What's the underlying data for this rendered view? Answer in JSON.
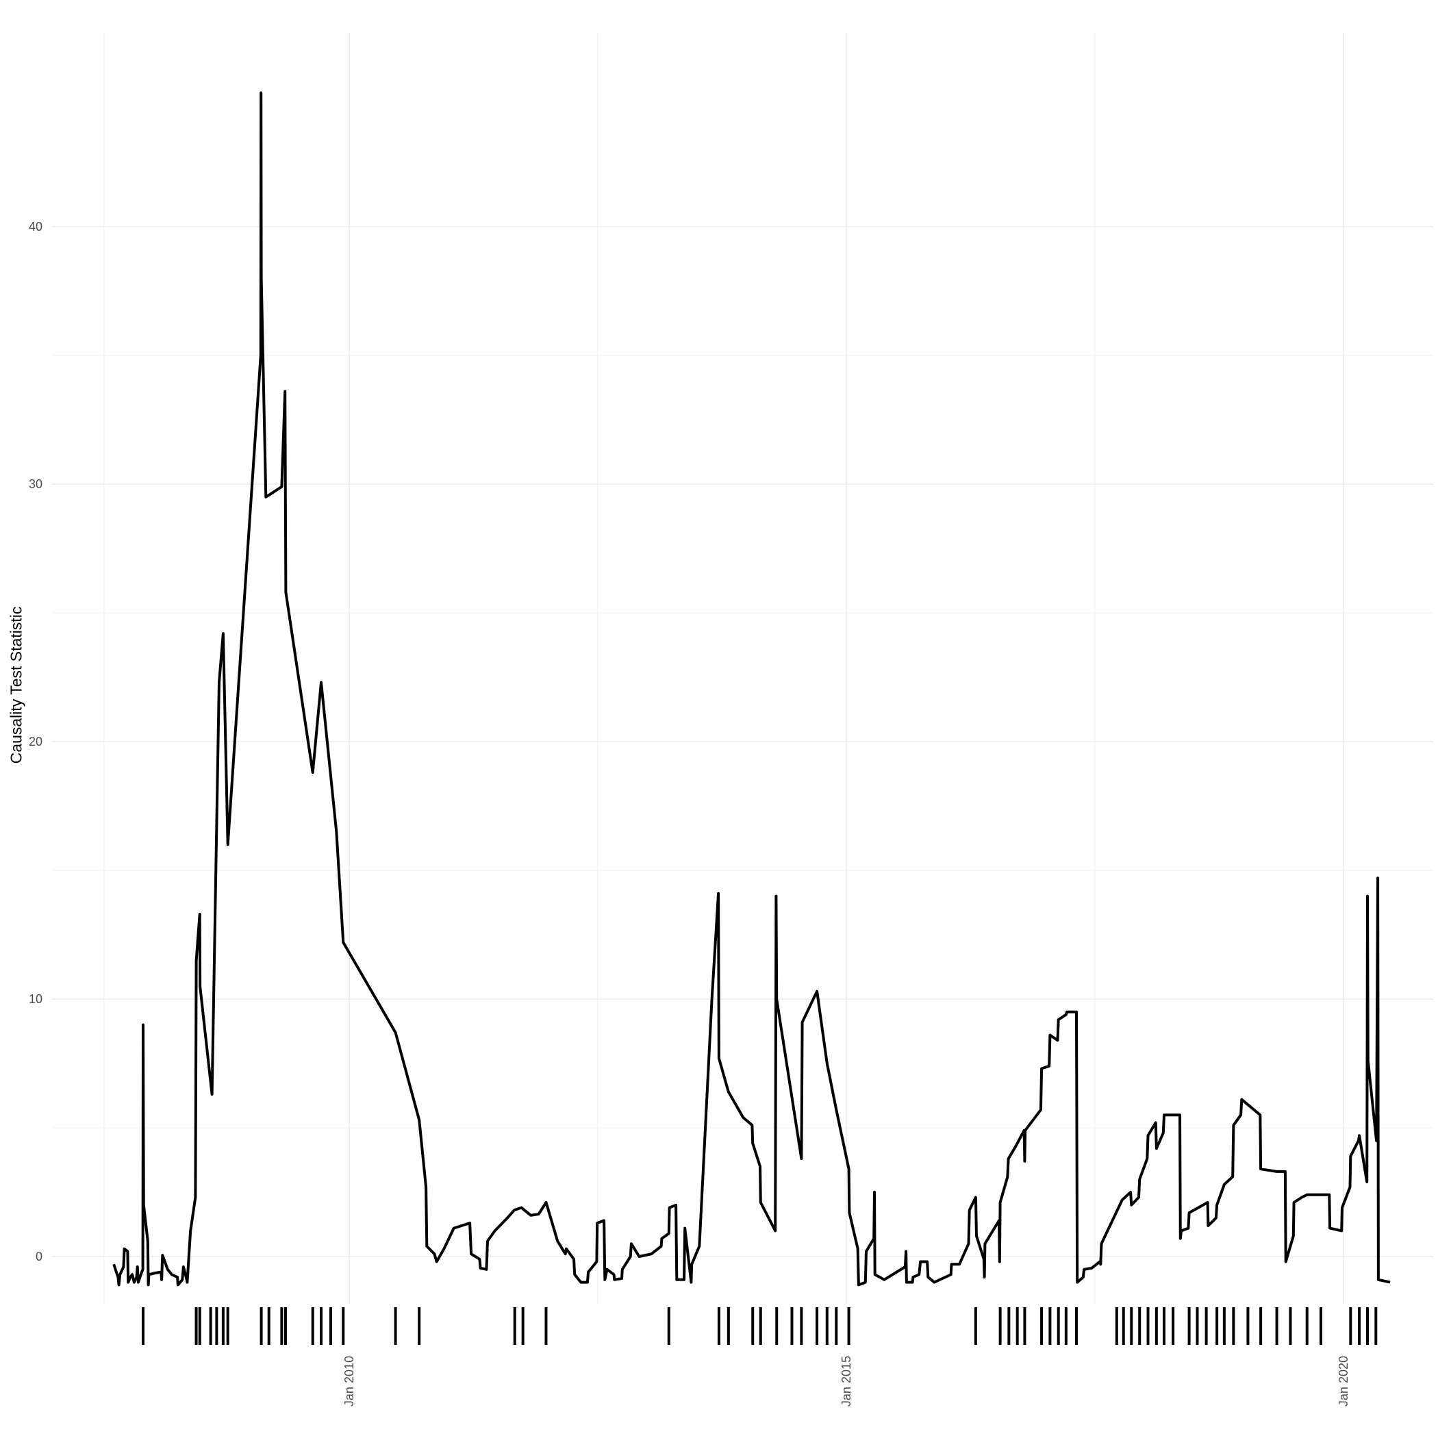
{
  "chart_data": {
    "type": "line",
    "title": "",
    "xlabel": "",
    "ylabel": "Causality Test Statistic",
    "xlim": [
      "2007-06-01",
      "2020-10-15"
    ],
    "ylim": [
      -2,
      45.3
    ],
    "x_ticks": [
      {
        "date": "2010-01-01",
        "label": "Jan 2010"
      },
      {
        "date": "2015-01-01",
        "label": "Jan 2015"
      },
      {
        "date": "2020-01-01",
        "label": "Jan 2020"
      }
    ],
    "x_minor_ticks": [
      "2007-07-15",
      "2012-07-01",
      "2017-07-01"
    ],
    "y_ticks": [
      0,
      10,
      20,
      30,
      40
    ],
    "y_minor_ticks": [
      5,
      15,
      25,
      35
    ],
    "grid": true,
    "colors": {
      "line": "#000000",
      "grid": "#ebebeb",
      "tick_text": "#4d4d4d"
    },
    "series": [
      {
        "name": "",
        "points": [
          [
            "2007-08-20",
            -0.3
          ],
          [
            "2007-09-05",
            -0.8
          ],
          [
            "2007-09-08",
            -1.1
          ],
          [
            "2007-09-12",
            -0.7
          ],
          [
            "2007-09-25",
            -0.4
          ],
          [
            "2007-09-28",
            0.3
          ],
          [
            "2007-10-10",
            0.2
          ],
          [
            "2007-10-12",
            -1.0
          ],
          [
            "2007-10-20",
            -0.8
          ],
          [
            "2007-10-27",
            -0.7
          ],
          [
            "2007-11-03",
            -1.0
          ],
          [
            "2007-11-12",
            -0.8
          ],
          [
            "2007-11-15",
            -0.4
          ],
          [
            "2007-11-18",
            -1.0
          ],
          [
            "2007-12-01",
            -0.6
          ],
          [
            "2007-12-05",
            -0.5
          ],
          [
            "2007-12-06",
            9.0
          ],
          [
            "2007-12-08",
            2.0
          ],
          [
            "2007-12-23",
            0.6
          ],
          [
            "2007-12-25",
            -1.1
          ],
          [
            "2007-12-27",
            -0.7
          ],
          [
            "2008-01-15",
            -0.65
          ],
          [
            "2008-02-10",
            -0.6
          ],
          [
            "2008-02-12",
            -0.9
          ],
          [
            "2008-02-15",
            0.05
          ],
          [
            "2008-03-05",
            -0.5
          ],
          [
            "2008-03-20",
            -0.7
          ],
          [
            "2008-04-10",
            -0.8
          ],
          [
            "2008-04-12",
            -1.1
          ],
          [
            "2008-04-28",
            -0.9
          ],
          [
            "2008-05-02",
            -0.4
          ],
          [
            "2008-05-12",
            -0.8
          ],
          [
            "2008-05-16",
            -1.0
          ],
          [
            "2008-05-28",
            1.0
          ],
          [
            "2008-06-15",
            2.3
          ],
          [
            "2008-06-18",
            11.5
          ],
          [
            "2008-07-01",
            13.3
          ],
          [
            "2008-07-02",
            10.5
          ],
          [
            "2008-08-15",
            6.3
          ],
          [
            "2008-09-10",
            22.3
          ],
          [
            "2008-09-25",
            24.2
          ],
          [
            "2008-10-12",
            16.0
          ],
          [
            "2009-02-10",
            35.0
          ],
          [
            "2009-02-11",
            45.2
          ],
          [
            "2009-02-12",
            38.0
          ],
          [
            "2009-03-01",
            29.5
          ],
          [
            "2009-04-28",
            29.9
          ],
          [
            "2009-05-10",
            33.6
          ],
          [
            "2009-05-13",
            25.8
          ],
          [
            "2009-08-20",
            18.8
          ],
          [
            "2009-09-20",
            22.3
          ],
          [
            "2009-11-15",
            16.5
          ],
          [
            "2009-12-10",
            12.2
          ],
          [
            "2010-06-20",
            8.7
          ],
          [
            "2010-09-15",
            5.3
          ],
          [
            "2010-10-10",
            2.7
          ],
          [
            "2010-10-13",
            0.4
          ],
          [
            "2010-11-10",
            0.1
          ],
          [
            "2010-11-18",
            -0.2
          ],
          [
            "2010-12-15",
            0.3
          ],
          [
            "2011-01-20",
            1.1
          ],
          [
            "2011-03-20",
            1.3
          ],
          [
            "2011-03-25",
            0.1
          ],
          [
            "2011-04-25",
            -0.1
          ],
          [
            "2011-04-28",
            -0.45
          ],
          [
            "2011-05-20",
            -0.5
          ],
          [
            "2011-05-24",
            0.6
          ],
          [
            "2011-06-20",
            1.0
          ],
          [
            "2011-08-05",
            1.5
          ],
          [
            "2011-08-30",
            1.8
          ],
          [
            "2011-09-25",
            1.9
          ],
          [
            "2011-10-30",
            1.6
          ],
          [
            "2011-11-28",
            1.65
          ],
          [
            "2011-12-25",
            2.1
          ],
          [
            "2012-02-05",
            0.6
          ],
          [
            "2012-03-05",
            0.1
          ],
          [
            "2012-03-08",
            0.3
          ],
          [
            "2012-04-05",
            -0.1
          ],
          [
            "2012-04-08",
            -0.7
          ],
          [
            "2012-05-01",
            -1.0
          ],
          [
            "2012-05-25",
            -1.0
          ],
          [
            "2012-05-28",
            -0.6
          ],
          [
            "2012-06-28",
            -0.2
          ],
          [
            "2012-06-30",
            1.3
          ],
          [
            "2012-07-25",
            1.4
          ],
          [
            "2012-07-28",
            -0.9
          ],
          [
            "2012-08-05",
            -0.5
          ],
          [
            "2012-08-30",
            -0.7
          ],
          [
            "2012-09-01",
            -0.9
          ],
          [
            "2012-09-28",
            -0.85
          ],
          [
            "2012-09-30",
            -0.5
          ],
          [
            "2012-10-30",
            0.0
          ],
          [
            "2012-11-02",
            0.5
          ],
          [
            "2012-12-01",
            0.0
          ],
          [
            "2013-01-15",
            0.1
          ],
          [
            "2013-02-20",
            0.4
          ],
          [
            "2013-02-22",
            0.7
          ],
          [
            "2013-03-20",
            0.9
          ],
          [
            "2013-03-22",
            1.9
          ],
          [
            "2013-04-15",
            2.0
          ],
          [
            "2013-04-18",
            -0.9
          ],
          [
            "2013-05-15",
            -0.9
          ],
          [
            "2013-05-18",
            1.1
          ],
          [
            "2013-06-10",
            -1.0
          ],
          [
            "2013-06-12",
            -0.3
          ],
          [
            "2013-07-10",
            0.4
          ],
          [
            "2013-08-25",
            10.0
          ],
          [
            "2013-09-18",
            14.1
          ],
          [
            "2013-09-20",
            7.7
          ],
          [
            "2013-10-25",
            6.4
          ],
          [
            "2013-12-18",
            5.4
          ],
          [
            "2014-01-20",
            5.1
          ],
          [
            "2014-01-22",
            4.4
          ],
          [
            "2014-02-18",
            3.5
          ],
          [
            "2014-02-20",
            2.1
          ],
          [
            "2014-04-15",
            1.0
          ],
          [
            "2014-04-18",
            14.0
          ],
          [
            "2014-04-20",
            10.0
          ],
          [
            "2014-07-20",
            3.8
          ],
          [
            "2014-07-23",
            9.1
          ],
          [
            "2014-09-15",
            10.3
          ],
          [
            "2014-10-22",
            7.5
          ],
          [
            "2014-11-25",
            5.7
          ],
          [
            "2015-01-10",
            3.4
          ],
          [
            "2015-01-12",
            1.7
          ],
          [
            "2015-02-12",
            0.3
          ],
          [
            "2015-02-15",
            -1.1
          ],
          [
            "2015-03-12",
            -1.0
          ],
          [
            "2015-03-15",
            0.2
          ],
          [
            "2015-04-12",
            0.7
          ],
          [
            "2015-04-14",
            2.5
          ],
          [
            "2015-04-16",
            -0.7
          ],
          [
            "2015-05-20",
            -0.9
          ],
          [
            "2015-08-05",
            -0.4
          ],
          [
            "2015-08-08",
            0.2
          ],
          [
            "2015-08-10",
            -1.0
          ],
          [
            "2015-09-01",
            -1.0
          ],
          [
            "2015-09-03",
            -0.8
          ],
          [
            "2015-09-25",
            -0.7
          ],
          [
            "2015-09-30",
            -0.2
          ],
          [
            "2015-10-25",
            -0.2
          ],
          [
            "2015-10-28",
            -0.8
          ],
          [
            "2015-11-20",
            -1.0
          ],
          [
            "2016-01-20",
            -0.7
          ],
          [
            "2016-01-22",
            -0.3
          ],
          [
            "2016-02-20",
            -0.3
          ],
          [
            "2016-03-25",
            0.5
          ],
          [
            "2016-03-28",
            1.8
          ],
          [
            "2016-04-20",
            2.3
          ],
          [
            "2016-04-23",
            0.8
          ],
          [
            "2016-05-20",
            -0.1
          ],
          [
            "2016-05-22",
            -0.8
          ],
          [
            "2016-05-24",
            0.5
          ],
          [
            "2016-07-15",
            1.4
          ],
          [
            "2016-07-17",
            -0.2
          ],
          [
            "2016-07-19",
            2.1
          ],
          [
            "2016-08-15",
            3.1
          ],
          [
            "2016-08-18",
            3.8
          ],
          [
            "2016-09-15",
            4.3
          ],
          [
            "2016-10-15",
            4.9
          ],
          [
            "2016-10-17",
            3.7
          ],
          [
            "2016-10-19",
            4.9
          ],
          [
            "2016-12-15",
            5.7
          ],
          [
            "2016-12-18",
            7.3
          ],
          [
            "2017-01-15",
            7.4
          ],
          [
            "2017-01-18",
            8.6
          ],
          [
            "2017-02-15",
            8.4
          ],
          [
            "2017-02-18",
            9.2
          ],
          [
            "2017-03-18",
            9.4
          ],
          [
            "2017-03-21",
            9.5
          ],
          [
            "2017-04-25",
            9.5
          ],
          [
            "2017-04-28",
            -1.0
          ],
          [
            "2017-05-20",
            -0.8
          ],
          [
            "2017-05-23",
            -0.5
          ],
          [
            "2017-06-20",
            -0.45
          ],
          [
            "2017-07-20",
            -0.2
          ],
          [
            "2017-07-23",
            -0.3
          ],
          [
            "2017-07-26",
            0.5
          ],
          [
            "2017-10-10",
            2.2
          ],
          [
            "2017-11-10",
            2.5
          ],
          [
            "2017-11-13",
            2.0
          ],
          [
            "2017-12-10",
            2.3
          ],
          [
            "2017-12-13",
            3.0
          ],
          [
            "2018-01-10",
            3.8
          ],
          [
            "2018-01-13",
            4.7
          ],
          [
            "2018-02-10",
            5.2
          ],
          [
            "2018-02-13",
            4.2
          ],
          [
            "2018-03-10",
            4.8
          ],
          [
            "2018-03-13",
            5.5
          ],
          [
            "2018-05-10",
            5.5
          ],
          [
            "2018-05-12",
            0.7
          ],
          [
            "2018-05-15",
            1.0
          ],
          [
            "2018-06-10",
            1.1
          ],
          [
            "2018-06-13",
            1.7
          ],
          [
            "2018-08-20",
            2.1
          ],
          [
            "2018-08-22",
            1.2
          ],
          [
            "2018-09-20",
            1.5
          ],
          [
            "2018-09-23",
            2.0
          ],
          [
            "2018-10-20",
            2.8
          ],
          [
            "2018-11-20",
            3.1
          ],
          [
            "2018-11-23",
            5.1
          ],
          [
            "2018-12-20",
            5.5
          ],
          [
            "2018-12-23",
            6.1
          ],
          [
            "2019-03-01",
            5.5
          ],
          [
            "2019-03-03",
            3.4
          ],
          [
            "2019-05-01",
            3.3
          ],
          [
            "2019-06-01",
            3.3
          ],
          [
            "2019-06-03",
            -0.2
          ],
          [
            "2019-07-01",
            0.8
          ],
          [
            "2019-07-03",
            2.1
          ],
          [
            "2019-08-01",
            2.3
          ],
          [
            "2019-08-20",
            2.4
          ],
          [
            "2019-11-10",
            2.4
          ],
          [
            "2019-11-12",
            1.1
          ],
          [
            "2019-12-25",
            1.0
          ],
          [
            "2019-12-27",
            1.9
          ],
          [
            "2020-01-25",
            2.7
          ],
          [
            "2020-01-27",
            3.9
          ],
          [
            "2020-02-25",
            4.5
          ],
          [
            "2020-02-28",
            4.7
          ],
          [
            "2020-03-27",
            2.9
          ],
          [
            "2020-03-29",
            14.0
          ],
          [
            "2020-03-31",
            7.6
          ],
          [
            "2020-05-01",
            4.5
          ],
          [
            "2020-05-06",
            14.7
          ],
          [
            "2020-05-08",
            -0.9
          ],
          [
            "2020-06-20",
            -1.0
          ]
        ]
      }
    ],
    "event_marks": [
      "2007-12-06",
      "2008-06-18",
      "2008-07-01",
      "2008-08-10",
      "2008-09-01",
      "2008-09-25",
      "2008-10-12",
      "2009-02-12",
      "2009-03-12",
      "2009-04-28",
      "2009-05-12",
      "2009-08-20",
      "2009-09-20",
      "2009-10-25",
      "2009-12-10",
      "2010-06-20",
      "2010-09-15",
      "2011-09-01",
      "2011-10-01",
      "2011-12-25",
      "2013-03-20",
      "2013-09-20",
      "2013-10-25",
      "2014-01-22",
      "2014-02-20",
      "2014-04-20",
      "2014-06-15",
      "2014-07-20",
      "2014-09-15",
      "2014-10-22",
      "2014-11-25",
      "2015-01-10",
      "2016-04-20",
      "2016-07-19",
      "2016-08-20",
      "2016-09-20",
      "2016-10-17",
      "2016-12-18",
      "2017-01-18",
      "2017-02-18",
      "2017-03-18",
      "2017-04-25",
      "2017-09-20",
      "2017-10-15",
      "2017-11-13",
      "2017-12-13",
      "2018-01-13",
      "2018-02-13",
      "2018-03-13",
      "2018-04-15",
      "2018-06-13",
      "2018-07-13",
      "2018-08-15",
      "2018-09-23",
      "2018-10-20",
      "2018-11-23",
      "2019-01-15",
      "2019-03-03",
      "2019-05-01",
      "2019-06-20",
      "2019-08-20",
      "2019-10-10",
      "2020-01-27",
      "2020-02-28",
      "2020-03-29",
      "2020-04-29"
    ]
  }
}
